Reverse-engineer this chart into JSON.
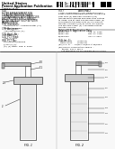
{
  "bg_color": "#ffffff",
  "text_color": "#000000",
  "title_line1": "United States",
  "title_line2": "Patent Application Publication",
  "pub_text": "Pub. No.: US 2009/0205445 A1",
  "date_text": "Aug. 20, 2009",
  "inventor_label": "(75) Inventors:",
  "assignee_label": "(73) Assignee:",
  "appl_label": "(21) Appl. No.:",
  "appl_val": "12/525,673",
  "pct_filed_label": "(22) PCT Filed:",
  "pct_filed_val": "Aug. 7, 2007",
  "pct_no_label": "(86) PCT No.:",
  "pct_no_val": "PCT/EP2007/058198",
  "claim_label": "(57)",
  "fig1_label": "FIG. 1",
  "fig2_label": "FIG. 2",
  "diagram_bg": "#f8f8f8",
  "line_color": "#333333",
  "light_gray": "#c8c8c8",
  "mid_gray": "#999999",
  "filter_fill": "#e0e0e0"
}
